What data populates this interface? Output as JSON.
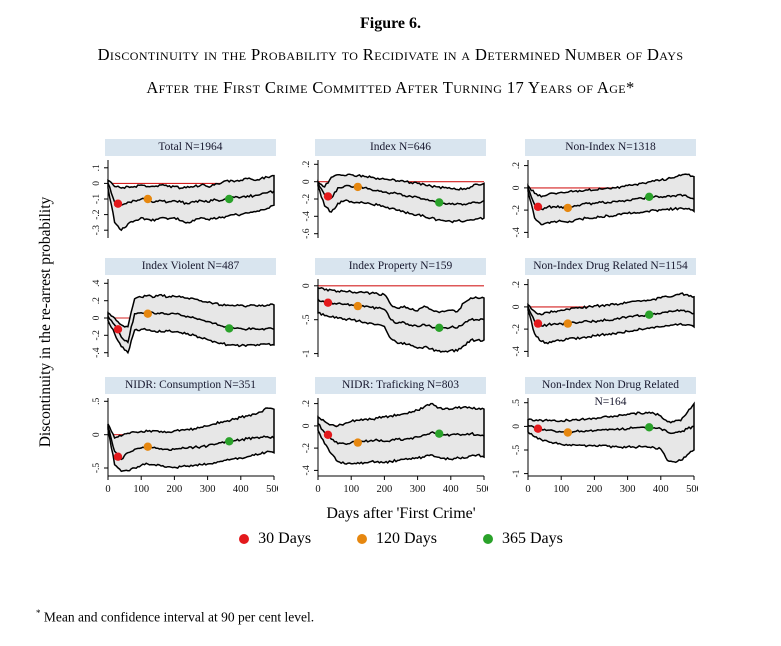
{
  "page": {
    "fig_label": "Figure 6.",
    "caption_line1": "Discontinuity in the Probability to Recidivate in a Determined Number of Days",
    "caption_line2": "After the First Crime Committed After Turning 17 Years of Age*"
  },
  "axes": {
    "ylabel": "Discontinuity in the re-arrest probability",
    "xlabel": "Days after 'First Crime'"
  },
  "legend": {
    "items": [
      {
        "label": "30 Days",
        "color": "#e3191c"
      },
      {
        "label": "120 Days",
        "color": "#e6870f"
      },
      {
        "label": "365 Days",
        "color": "#2aa22a"
      }
    ]
  },
  "footnote": {
    "marker": "*",
    "text": "Mean and confidence interval at 90 per cent level."
  },
  "style": {
    "header_bg": "#d9e5ef",
    "band_fill": "#e7e7e7",
    "curve_color": "#000000",
    "ref_line_color": "#d42020"
  },
  "chart_data": {
    "type": "area",
    "layout": "3x3 small multiples, shared axes labels, confidence band (upper/lower) with mean line, red reference line at y=0",
    "x_start": 0,
    "x_step": 20,
    "x_end": 500,
    "xticks": [
      0,
      100,
      200,
      300,
      400,
      500
    ],
    "ref_y": 0,
    "marker_days": [
      30,
      120,
      365
    ],
    "panels": [
      {
        "title": "Total N=1964",
        "ylim": [
          -0.35,
          0.15
        ],
        "yticks": [
          [
            0.1,
            ".1"
          ],
          [
            0,
            "0"
          ],
          [
            -0.1,
            "-.1"
          ],
          [
            -0.2,
            "-.2"
          ],
          [
            -0.3,
            "-.3"
          ]
        ],
        "mean": [
          0.0,
          -0.12,
          -0.14,
          -0.12,
          -0.11,
          -0.1,
          -0.1,
          -0.12,
          -0.11,
          -0.12,
          -0.11,
          -0.12,
          -0.13,
          -0.12,
          -0.11,
          -0.12,
          -0.1,
          -0.11,
          -0.1,
          -0.09,
          -0.09,
          -0.08,
          -0.08,
          -0.07,
          -0.06,
          -0.05
        ],
        "upper": [
          0.02,
          -0.02,
          -0.03,
          -0.02,
          -0.02,
          -0.01,
          -0.02,
          -0.02,
          -0.01,
          -0.02,
          -0.02,
          -0.03,
          -0.02,
          -0.02,
          -0.01,
          -0.02,
          -0.01,
          0.0,
          0.02,
          0.01,
          0.02,
          0.03,
          0.02,
          0.03,
          0.04,
          0.05
        ],
        "lower": [
          -0.03,
          -0.25,
          -0.3,
          -0.26,
          -0.24,
          -0.22,
          -0.23,
          -0.24,
          -0.22,
          -0.23,
          -0.22,
          -0.24,
          -0.25,
          -0.24,
          -0.22,
          -0.23,
          -0.22,
          -0.22,
          -0.21,
          -0.2,
          -0.2,
          -0.19,
          -0.18,
          -0.17,
          -0.16,
          -0.14
        ],
        "dots": [
          -0.13,
          -0.1,
          -0.1
        ]
      },
      {
        "title": "Index N=646",
        "ylim": [
          -0.65,
          0.25
        ],
        "yticks": [
          [
            0.2,
            ".2"
          ],
          [
            0,
            "0"
          ],
          [
            -0.2,
            "-.2"
          ],
          [
            -0.4,
            "-.4"
          ],
          [
            -0.6,
            "-.6"
          ]
        ],
        "mean": [
          -0.02,
          -0.15,
          -0.19,
          -0.07,
          -0.05,
          -0.06,
          -0.06,
          -0.07,
          -0.09,
          -0.1,
          -0.12,
          -0.13,
          -0.14,
          -0.16,
          -0.17,
          -0.18,
          -0.2,
          -0.22,
          -0.24,
          -0.25,
          -0.26,
          -0.25,
          -0.26,
          -0.25,
          -0.24,
          -0.22
        ],
        "upper": [
          0.0,
          -0.06,
          0.05,
          0.08,
          0.07,
          0.08,
          0.07,
          0.06,
          0.05,
          0.04,
          0.03,
          0.02,
          0.01,
          0.0,
          -0.01,
          -0.02,
          -0.03,
          -0.05,
          -0.06,
          -0.07,
          -0.08,
          -0.09,
          -0.08,
          -0.06,
          -0.03,
          -0.02
        ],
        "lower": [
          -0.05,
          -0.28,
          -0.35,
          -0.25,
          -0.22,
          -0.23,
          -0.24,
          -0.25,
          -0.26,
          -0.27,
          -0.29,
          -0.31,
          -0.33,
          -0.35,
          -0.37,
          -0.38,
          -0.4,
          -0.42,
          -0.44,
          -0.45,
          -0.46,
          -0.45,
          -0.46,
          -0.44,
          -0.43,
          -0.42
        ],
        "dots": [
          -0.17,
          -0.06,
          -0.24
        ]
      },
      {
        "title": "Non-Index N=1318",
        "ylim": [
          -0.45,
          0.25
        ],
        "yticks": [
          [
            0.2,
            ".2"
          ],
          [
            0,
            "0"
          ],
          [
            -0.2,
            "-.2"
          ],
          [
            -0.4,
            "-.4"
          ]
        ],
        "mean": [
          0.0,
          -0.15,
          -0.19,
          -0.17,
          -0.17,
          -0.17,
          -0.18,
          -0.16,
          -0.15,
          -0.14,
          -0.14,
          -0.13,
          -0.13,
          -0.12,
          -0.12,
          -0.11,
          -0.1,
          -0.09,
          -0.09,
          -0.08,
          -0.08,
          -0.07,
          -0.07,
          -0.06,
          -0.08,
          -0.1
        ],
        "upper": [
          0.02,
          -0.05,
          -0.08,
          -0.06,
          -0.05,
          -0.04,
          -0.04,
          -0.03,
          -0.03,
          -0.02,
          -0.02,
          -0.01,
          0.0,
          0.0,
          0.01,
          0.02,
          0.03,
          0.04,
          0.05,
          0.06,
          0.07,
          0.08,
          0.09,
          0.11,
          0.12,
          0.1
        ],
        "lower": [
          -0.03,
          -0.27,
          -0.33,
          -0.31,
          -0.3,
          -0.3,
          -0.31,
          -0.29,
          -0.28,
          -0.27,
          -0.27,
          -0.26,
          -0.25,
          -0.25,
          -0.24,
          -0.23,
          -0.22,
          -0.22,
          -0.21,
          -0.2,
          -0.2,
          -0.19,
          -0.19,
          -0.18,
          -0.19,
          -0.21
        ],
        "dots": [
          -0.17,
          -0.18,
          -0.08
        ]
      },
      {
        "title": "Index Violent N=487",
        "ylim": [
          -0.45,
          0.45
        ],
        "yticks": [
          [
            0.4,
            ".4"
          ],
          [
            0.2,
            ".2"
          ],
          [
            0,
            "0"
          ],
          [
            -0.2,
            "-.2"
          ],
          [
            -0.4,
            "-.4"
          ]
        ],
        "mean": [
          0.02,
          -0.08,
          -0.22,
          -0.28,
          0.05,
          0.06,
          0.07,
          0.05,
          0.06,
          0.04,
          0.05,
          0.03,
          0.02,
          0.0,
          -0.02,
          -0.04,
          -0.06,
          -0.09,
          -0.11,
          -0.12,
          -0.12,
          -0.13,
          -0.12,
          -0.13,
          -0.12,
          -0.13
        ],
        "upper": [
          0.06,
          0.0,
          -0.08,
          -0.1,
          0.22,
          0.24,
          0.26,
          0.24,
          0.27,
          0.24,
          0.25,
          0.24,
          0.23,
          0.22,
          0.2,
          0.18,
          0.17,
          0.15,
          0.15,
          0.14,
          0.15,
          0.14,
          0.15,
          0.14,
          0.15,
          0.15
        ],
        "lower": [
          -0.03,
          -0.18,
          -0.33,
          -0.4,
          -0.14,
          -0.13,
          -0.14,
          -0.15,
          -0.16,
          -0.15,
          -0.16,
          -0.17,
          -0.18,
          -0.2,
          -0.23,
          -0.25,
          -0.27,
          -0.29,
          -0.31,
          -0.31,
          -0.32,
          -0.31,
          -0.31,
          -0.3,
          -0.3,
          -0.31
        ],
        "dots": [
          -0.13,
          0.05,
          -0.12
        ]
      },
      {
        "title": "Index Property N=159",
        "ylim": [
          -1.05,
          0.1
        ],
        "yticks": [
          [
            0,
            "0"
          ],
          [
            -0.5,
            "-.5"
          ],
          [
            -1,
            "-1"
          ]
        ],
        "mean": [
          -0.2,
          -0.24,
          -0.25,
          -0.26,
          -0.27,
          -0.28,
          -0.3,
          -0.31,
          -0.32,
          -0.33,
          -0.35,
          -0.5,
          -0.55,
          -0.54,
          -0.58,
          -0.6,
          -0.57,
          -0.6,
          -0.62,
          -0.62,
          -0.61,
          -0.62,
          -0.55,
          -0.5,
          -0.5,
          -0.5
        ],
        "upper": [
          -0.03,
          -0.06,
          -0.06,
          -0.08,
          -0.08,
          -0.09,
          -0.1,
          -0.1,
          -0.11,
          -0.12,
          -0.13,
          -0.28,
          -0.33,
          -0.3,
          -0.35,
          -0.37,
          -0.3,
          -0.35,
          -0.38,
          -0.38,
          -0.36,
          -0.38,
          -0.25,
          -0.18,
          -0.18,
          -0.18
        ],
        "lower": [
          -0.4,
          -0.44,
          -0.46,
          -0.48,
          -0.49,
          -0.5,
          -0.52,
          -0.54,
          -0.55,
          -0.57,
          -0.6,
          -0.78,
          -0.85,
          -0.84,
          -0.88,
          -0.92,
          -0.9,
          -0.93,
          -0.96,
          -0.97,
          -0.95,
          -0.96,
          -0.88,
          -0.8,
          -0.8,
          -0.8
        ],
        "dots": [
          -0.25,
          -0.3,
          -0.62
        ]
      },
      {
        "title": "Non-Index Drug Related N=1154",
        "ylim": [
          -0.45,
          0.25
        ],
        "yticks": [
          [
            0.2,
            ".2"
          ],
          [
            0,
            "0"
          ],
          [
            -0.2,
            "-.2"
          ],
          [
            -0.4,
            "-.4"
          ]
        ],
        "mean": [
          0.0,
          -0.13,
          -0.17,
          -0.16,
          -0.15,
          -0.15,
          -0.15,
          -0.14,
          -0.14,
          -0.13,
          -0.13,
          -0.12,
          -0.12,
          -0.11,
          -0.1,
          -0.09,
          -0.08,
          -0.08,
          -0.07,
          -0.06,
          -0.06,
          -0.05,
          -0.04,
          -0.03,
          -0.04,
          -0.06
        ],
        "upper": [
          0.02,
          -0.04,
          -0.07,
          -0.05,
          -0.04,
          -0.03,
          -0.02,
          -0.01,
          -0.01,
          0.0,
          0.01,
          0.01,
          0.02,
          0.02,
          0.03,
          0.04,
          0.05,
          0.05,
          0.06,
          0.07,
          0.08,
          0.09,
          0.1,
          0.12,
          0.11,
          0.09
        ],
        "lower": [
          -0.03,
          -0.24,
          -0.31,
          -0.33,
          -0.31,
          -0.3,
          -0.29,
          -0.28,
          -0.28,
          -0.27,
          -0.26,
          -0.25,
          -0.25,
          -0.24,
          -0.23,
          -0.22,
          -0.21,
          -0.2,
          -0.19,
          -0.19,
          -0.18,
          -0.17,
          -0.16,
          -0.15,
          -0.16,
          -0.18
        ],
        "dots": [
          -0.15,
          -0.15,
          -0.07
        ]
      },
      {
        "title": "NIDR: Consumption N=351",
        "ylim": [
          -0.62,
          0.55
        ],
        "yticks": [
          [
            0.5,
            ".5"
          ],
          [
            0,
            "0"
          ],
          [
            -0.5,
            "-.5"
          ]
        ],
        "mean": [
          0.12,
          -0.25,
          -0.37,
          -0.27,
          -0.22,
          -0.2,
          -0.18,
          -0.19,
          -0.21,
          -0.22,
          -0.22,
          -0.21,
          -0.2,
          -0.19,
          -0.18,
          -0.17,
          -0.15,
          -0.12,
          -0.1,
          -0.09,
          -0.08,
          -0.06,
          -0.05,
          -0.04,
          -0.03,
          -0.05
        ],
        "upper": [
          0.16,
          -0.05,
          -0.02,
          0.02,
          0.04,
          0.05,
          0.05,
          0.06,
          0.05,
          0.04,
          0.06,
          0.07,
          0.08,
          0.09,
          0.11,
          0.13,
          0.16,
          0.19,
          0.21,
          0.23,
          0.26,
          0.28,
          0.31,
          0.34,
          0.4,
          0.38
        ],
        "lower": [
          0.08,
          -0.45,
          -0.55,
          -0.54,
          -0.5,
          -0.46,
          -0.44,
          -0.45,
          -0.47,
          -0.48,
          -0.49,
          -0.48,
          -0.47,
          -0.46,
          -0.45,
          -0.44,
          -0.42,
          -0.4,
          -0.37,
          -0.36,
          -0.35,
          -0.33,
          -0.31,
          -0.29,
          -0.25,
          -0.27
        ],
        "dots": [
          -0.33,
          -0.18,
          -0.1
        ]
      },
      {
        "title": "NIDR: Traficking N=803",
        "ylim": [
          -0.45,
          0.25
        ],
        "yticks": [
          [
            0.2,
            ".2"
          ],
          [
            0,
            "0"
          ],
          [
            -0.2,
            "-.2"
          ],
          [
            -0.4,
            "-.4"
          ]
        ],
        "mean": [
          0.02,
          -0.06,
          -0.12,
          -0.16,
          -0.16,
          -0.15,
          -0.15,
          -0.14,
          -0.13,
          -0.13,
          -0.14,
          -0.13,
          -0.12,
          -0.12,
          -0.11,
          -0.1,
          -0.08,
          -0.06,
          -0.07,
          -0.08,
          -0.08,
          -0.07,
          -0.08,
          -0.07,
          -0.08,
          -0.09
        ],
        "upper": [
          0.08,
          0.04,
          0.01,
          0.0,
          0.02,
          0.04,
          0.05,
          0.06,
          0.06,
          0.07,
          0.08,
          0.09,
          0.1,
          0.11,
          0.12,
          0.14,
          0.17,
          0.2,
          0.16,
          0.15,
          0.15,
          0.16,
          0.17,
          0.16,
          0.15,
          0.15
        ],
        "lower": [
          -0.04,
          -0.16,
          -0.25,
          -0.32,
          -0.34,
          -0.34,
          -0.33,
          -0.33,
          -0.32,
          -0.32,
          -0.33,
          -0.32,
          -0.31,
          -0.3,
          -0.3,
          -0.29,
          -0.28,
          -0.26,
          -0.28,
          -0.29,
          -0.3,
          -0.28,
          -0.29,
          -0.27,
          -0.26,
          -0.28
        ],
        "dots": [
          -0.08,
          -0.15,
          -0.07
        ]
      },
      {
        "title": "Non-Index Non Drug Related N=164",
        "ylim": [
          -1.05,
          0.6
        ],
        "yticks": [
          [
            0.5,
            ".5"
          ],
          [
            0,
            "0"
          ],
          [
            -0.5,
            "-.5"
          ],
          [
            -1,
            "-1"
          ]
        ],
        "mean": [
          0.02,
          -0.03,
          -0.06,
          -0.08,
          -0.1,
          -0.12,
          -0.13,
          -0.11,
          -0.1,
          -0.1,
          -0.09,
          -0.08,
          -0.08,
          -0.07,
          -0.06,
          -0.05,
          -0.03,
          -0.02,
          -0.02,
          -0.03,
          -0.05,
          -0.12,
          -0.14,
          -0.12,
          -0.05,
          0.0
        ],
        "upper": [
          0.14,
          0.12,
          0.13,
          0.12,
          0.13,
          0.12,
          0.13,
          0.14,
          0.15,
          0.16,
          0.17,
          0.18,
          0.2,
          0.22,
          0.24,
          0.26,
          0.28,
          0.27,
          0.28,
          0.27,
          0.22,
          0.1,
          0.1,
          0.12,
          0.3,
          0.48
        ],
        "lower": [
          -0.12,
          -0.22,
          -0.28,
          -0.32,
          -0.35,
          -0.38,
          -0.4,
          -0.39,
          -0.4,
          -0.41,
          -0.4,
          -0.41,
          -0.42,
          -0.43,
          -0.44,
          -0.43,
          -0.44,
          -0.43,
          -0.44,
          -0.45,
          -0.48,
          -0.72,
          -0.75,
          -0.72,
          -0.6,
          -0.5
        ],
        "dots": [
          -0.05,
          -0.13,
          -0.02
        ]
      }
    ]
  }
}
